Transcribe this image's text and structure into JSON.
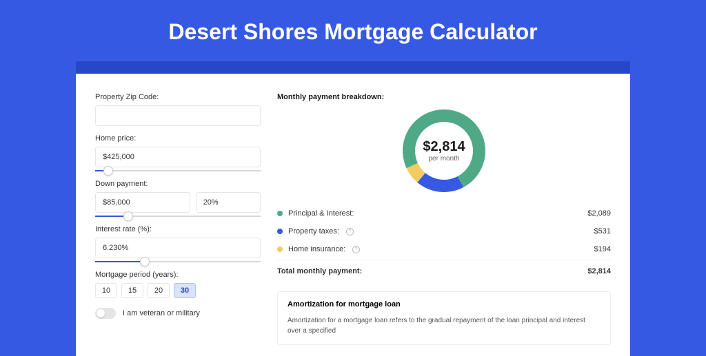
{
  "title": "Desert Shores Mortgage Calculator",
  "colors": {
    "page_bg": "#3659e3",
    "header_band": "#2647c8",
    "card_bg": "#ffffff",
    "accent": "#3659e3"
  },
  "form": {
    "zip": {
      "label": "Property Zip Code:",
      "value": ""
    },
    "home_price": {
      "label": "Home price:",
      "value": "$425,000",
      "slider_pct": 8
    },
    "down_payment": {
      "label": "Down payment:",
      "amount": "$85,000",
      "percent": "20%",
      "slider_pct": 20
    },
    "interest_rate": {
      "label": "Interest rate (%):",
      "value": "6.230%",
      "slider_pct": 30
    },
    "mortgage_period": {
      "label": "Mortgage period (years):",
      "options": [
        "10",
        "15",
        "20",
        "30"
      ],
      "selected": "30"
    },
    "veteran": {
      "label": "I am veteran or military",
      "on": false
    }
  },
  "breakdown": {
    "title": "Monthly payment breakdown:",
    "center_amount": "$2,814",
    "center_sub": "per month",
    "donut": {
      "type": "donut",
      "size": 120,
      "thickness": 18,
      "start_angle": -115,
      "segments": [
        {
          "label": "Principal & Interest:",
          "value": 2089,
          "display": "$2,089",
          "color": "#4fa987",
          "pct": 74.2
        },
        {
          "label": "Property taxes:",
          "value": 531,
          "display": "$531",
          "color": "#3659e3",
          "pct": 18.9,
          "info": true
        },
        {
          "label": "Home insurance:",
          "value": 194,
          "display": "$194",
          "color": "#f0cc62",
          "pct": 6.9,
          "info": true
        }
      ]
    },
    "total_label": "Total monthly payment:",
    "total_value": "$2,814"
  },
  "amortization": {
    "title": "Amortization for mortgage loan",
    "text": "Amortization for a mortgage loan refers to the gradual repayment of the loan principal and interest over a specified"
  }
}
